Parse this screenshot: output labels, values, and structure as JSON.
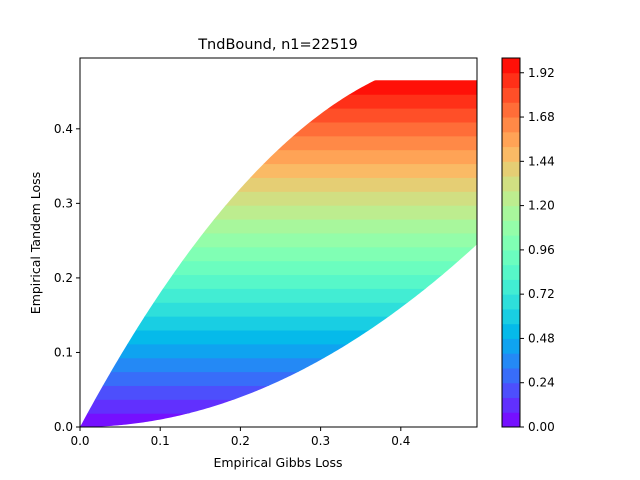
{
  "chart_data": {
    "type": "heatmap",
    "title": "TndBound, n1=22519",
    "xlabel": "Empirical Gibbs Loss",
    "ylabel": "Empirical Tandem Loss",
    "xlim": [
      0,
      0.495
    ],
    "ylim": [
      0,
      0.495
    ],
    "xticks": [
      "0.0",
      "0.1",
      "0.2",
      "0.3",
      "0.4"
    ],
    "yticks": [
      "0.0",
      "0.1",
      "0.2",
      "0.3",
      "0.4"
    ],
    "colorbar": {
      "colormap": "rainbow",
      "range": [
        0,
        2.0
      ],
      "levels": 25,
      "ticks": [
        "0.00",
        "0.24",
        "0.48",
        "0.72",
        "0.96",
        "1.20",
        "1.44",
        "1.68",
        "1.92"
      ]
    },
    "region": {
      "x_range": [
        0,
        0.495
      ],
      "upper_boundary": "y = 2x - 2x^2",
      "lower_boundary": "y = x^2",
      "value_at_point": "z approx 4.3 * y",
      "note": "filled contour bands over the feasible region x^2 <= y <= 2x - 2x^2"
    },
    "grid": false,
    "legend": "none"
  }
}
